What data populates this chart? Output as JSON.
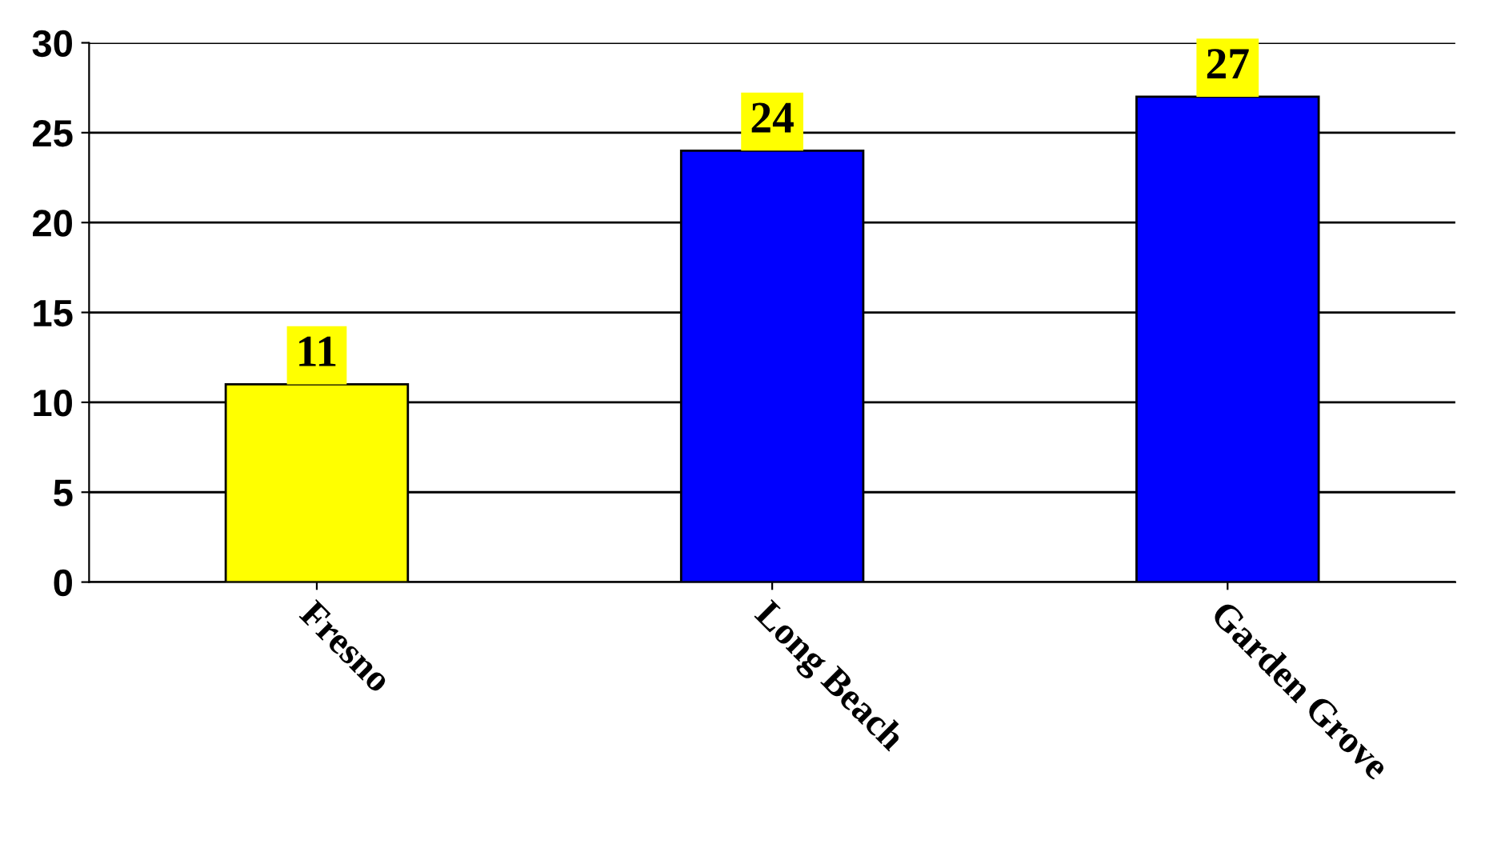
{
  "chart_data": {
    "type": "bar",
    "categories": [
      "Fresno",
      "Long Beach",
      "Garden Grove"
    ],
    "values": [
      11,
      24,
      27
    ],
    "colors": [
      "#ffff00",
      "#0000ff",
      "#0000ff"
    ],
    "ylim": [
      0,
      30
    ],
    "yticks": [
      0,
      5,
      10,
      15,
      20,
      25,
      30
    ],
    "grid": "y",
    "data_labels": true
  }
}
